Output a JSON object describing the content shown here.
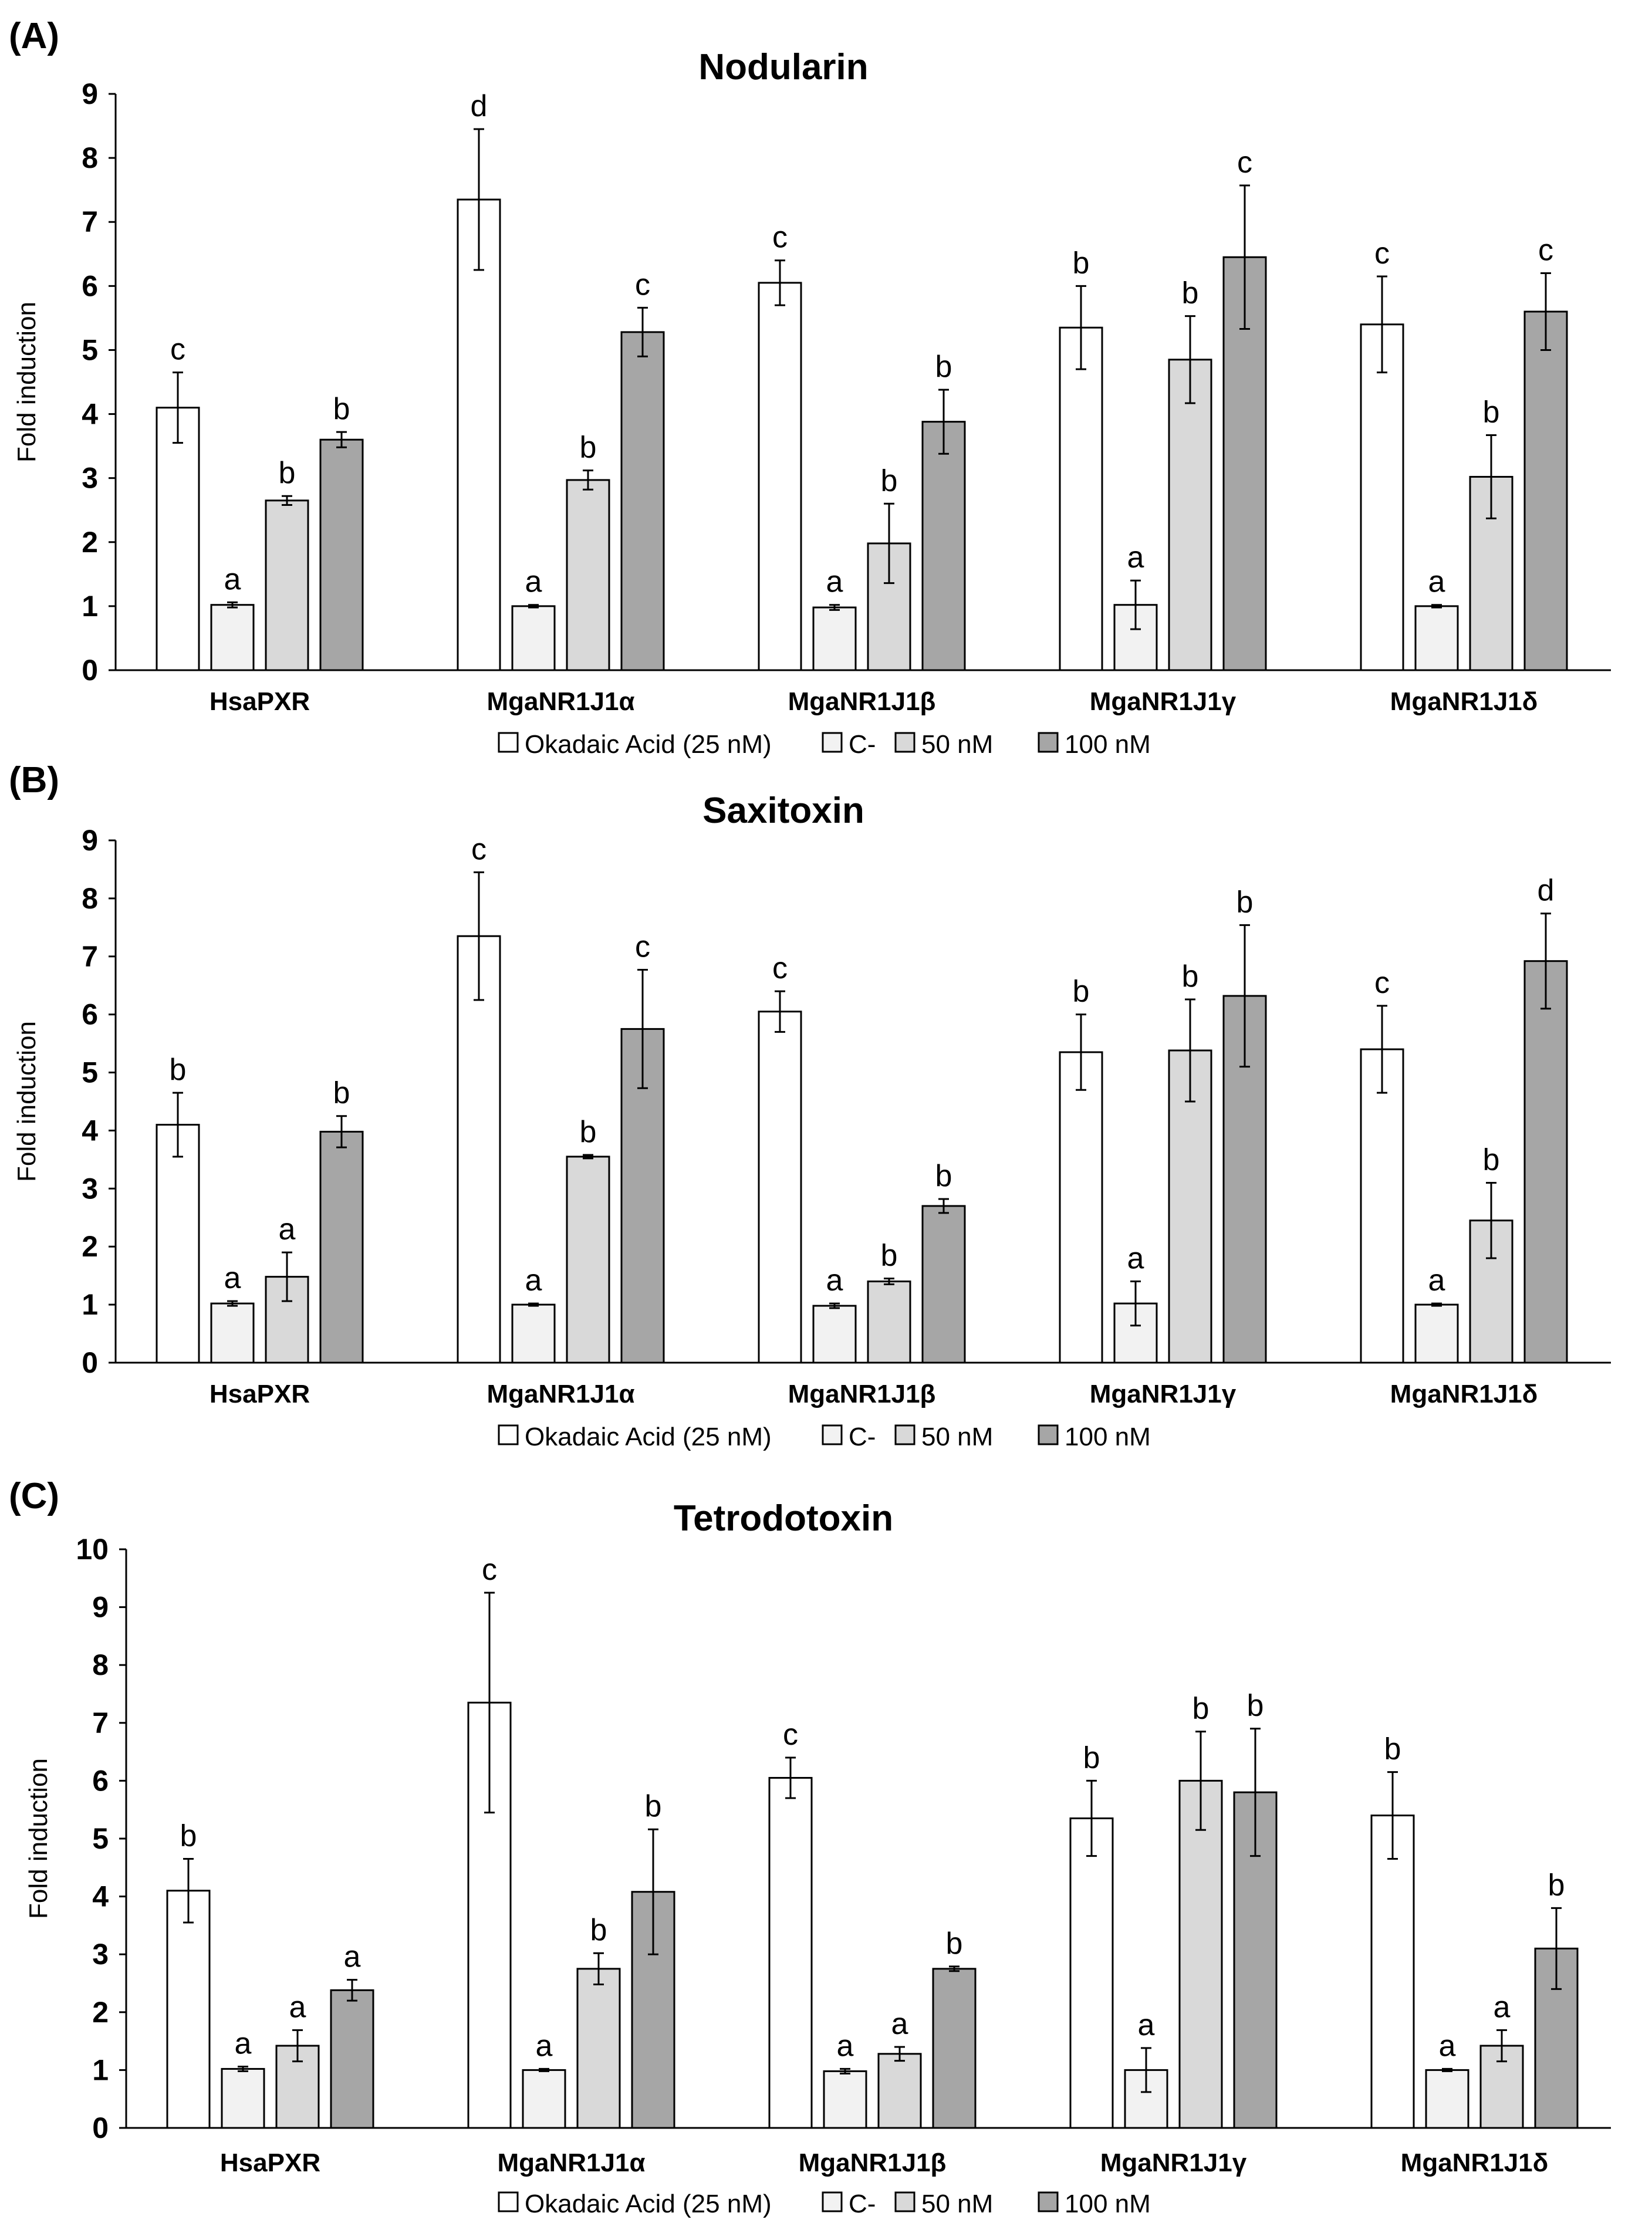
{
  "figure": {
    "panels": [
      "(A)",
      "(B)",
      "(C)"
    ]
  },
  "chart_data": [
    {
      "type": "bar",
      "panel_label": "(A)",
      "title": "Nodularin",
      "ylabel": "Fold induction",
      "xlabel": "",
      "ylim": [
        0,
        9
      ],
      "yticks": [
        0,
        1,
        2,
        3,
        4,
        5,
        6,
        7,
        8,
        9
      ],
      "grid": false,
      "legend_position": "bottom",
      "categories": [
        "HsaPXR",
        "MgaNR1J1α",
        "MgaNR1J1β",
        "MgaNR1J1γ",
        "MgaNR1J1δ"
      ],
      "series": [
        {
          "name": "Okadaic Acid (25 nM)",
          "color": "#ffffff",
          "values": [
            4.1,
            7.35,
            6.05,
            5.35,
            5.4
          ],
          "errors": [
            0.55,
            1.1,
            0.35,
            0.65,
            0.75
          ],
          "labels": [
            "c",
            "d",
            "c",
            "b",
            "c"
          ]
        },
        {
          "name": "C-",
          "color": "#f2f2f2",
          "values": [
            1.02,
            1.0,
            0.98,
            1.02,
            1.0
          ],
          "errors": [
            0.04,
            0.02,
            0.04,
            0.38,
            0.02
          ],
          "labels": [
            "a",
            "a",
            "a",
            "a",
            "a"
          ]
        },
        {
          "name": "50 nM",
          "color": "#d9d9d9",
          "values": [
            2.65,
            2.97,
            1.98,
            4.85,
            3.02
          ],
          "errors": [
            0.07,
            0.15,
            0.62,
            0.68,
            0.65
          ],
          "labels": [
            "b",
            "b",
            "b",
            "b",
            "b"
          ]
        },
        {
          "name": "100 nM",
          "color": "#a6a6a6",
          "values": [
            3.6,
            5.28,
            3.88,
            6.45,
            5.6
          ],
          "errors": [
            0.12,
            0.38,
            0.5,
            1.12,
            0.6
          ],
          "labels": [
            "b",
            "c",
            "b",
            "c",
            "c"
          ]
        }
      ]
    },
    {
      "type": "bar",
      "panel_label": "(B)",
      "title": "Saxitoxin",
      "ylabel": "Fold induction",
      "xlabel": "",
      "ylim": [
        0,
        9
      ],
      "yticks": [
        0,
        1,
        2,
        3,
        4,
        5,
        6,
        7,
        8,
        9
      ],
      "grid": false,
      "legend_position": "bottom",
      "categories": [
        "HsaPXR",
        "MgaNR1J1α",
        "MgaNR1J1β",
        "MgaNR1J1γ",
        "MgaNR1J1δ"
      ],
      "series": [
        {
          "name": "Okadaic Acid (25 nM)",
          "color": "#ffffff",
          "values": [
            4.1,
            7.35,
            6.05,
            5.35,
            5.4
          ],
          "errors": [
            0.55,
            1.1,
            0.35,
            0.65,
            0.75
          ],
          "labels": [
            "b",
            "c",
            "c",
            "b",
            "c"
          ]
        },
        {
          "name": "C-",
          "color": "#f2f2f2",
          "values": [
            1.02,
            1.0,
            0.98,
            1.02,
            1.0
          ],
          "errors": [
            0.04,
            0.02,
            0.04,
            0.38,
            0.02
          ],
          "labels": [
            "a",
            "a",
            "a",
            "a",
            "a"
          ]
        },
        {
          "name": "50 nM",
          "color": "#d9d9d9",
          "values": [
            1.48,
            3.55,
            1.4,
            5.38,
            2.45
          ],
          "errors": [
            0.42,
            0.03,
            0.05,
            0.88,
            0.65
          ],
          "labels": [
            "a",
            "b",
            "b",
            "b",
            "b"
          ]
        },
        {
          "name": "100 nM",
          "color": "#a6a6a6",
          "values": [
            3.98,
            5.75,
            2.7,
            6.32,
            6.92
          ],
          "errors": [
            0.27,
            1.02,
            0.12,
            1.22,
            0.82
          ],
          "labels": [
            "b",
            "c",
            "b",
            "b",
            "d"
          ]
        }
      ]
    },
    {
      "type": "bar",
      "panel_label": "(C)",
      "title": "Tetrodotoxin",
      "ylabel": "Fold induction",
      "xlabel": "",
      "ylim": [
        0,
        10
      ],
      "yticks": [
        0,
        1,
        2,
        3,
        4,
        5,
        6,
        7,
        8,
        9,
        10
      ],
      "grid": false,
      "legend_position": "bottom",
      "categories": [
        "HsaPXR",
        "MgaNR1J1α",
        "MgaNR1J1β",
        "MgaNR1J1γ",
        "MgaNR1J1δ"
      ],
      "series": [
        {
          "name": "Okadaic Acid (25 nM)",
          "color": "#ffffff",
          "values": [
            4.1,
            7.35,
            6.05,
            5.35,
            5.4
          ],
          "errors": [
            0.55,
            1.9,
            0.35,
            0.65,
            0.75
          ],
          "labels": [
            "b",
            "c",
            "c",
            "b",
            "b"
          ]
        },
        {
          "name": "C-",
          "color": "#f2f2f2",
          "values": [
            1.02,
            1.0,
            0.98,
            1.0,
            1.0
          ],
          "errors": [
            0.04,
            0.02,
            0.04,
            0.38,
            0.02
          ],
          "labels": [
            "a",
            "a",
            "a",
            "a",
            "a"
          ]
        },
        {
          "name": "50 nM",
          "color": "#d9d9d9",
          "values": [
            1.42,
            2.75,
            1.28,
            6.0,
            1.42
          ],
          "errors": [
            0.27,
            0.27,
            0.12,
            0.85,
            0.27
          ],
          "labels": [
            "a",
            "b",
            "a",
            "b",
            "a"
          ]
        },
        {
          "name": "100 nM",
          "color": "#a6a6a6",
          "values": [
            2.38,
            4.08,
            2.75,
            5.8,
            3.1
          ],
          "errors": [
            0.18,
            1.08,
            0.04,
            1.1,
            0.7
          ],
          "labels": [
            "a",
            "b",
            "b",
            "b",
            "b"
          ]
        }
      ]
    }
  ]
}
